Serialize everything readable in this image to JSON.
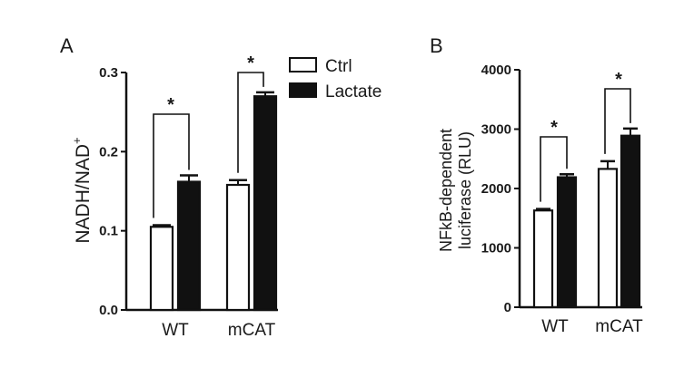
{
  "legend": {
    "ctrl_label": "Ctrl",
    "lactate_label": "Lactate",
    "ctrl_color": "#ffffff",
    "lactate_color": "#111111"
  },
  "chart_data": [
    {
      "panel": "A",
      "type": "bar",
      "categories": [
        "WT",
        "mCAT"
      ],
      "series": [
        {
          "name": "Ctrl",
          "values": [
            0.105,
            0.158
          ],
          "errors": [
            0.002,
            0.006
          ]
        },
        {
          "name": "Lactate",
          "values": [
            0.162,
            0.27
          ],
          "errors": [
            0.008,
            0.005
          ]
        }
      ],
      "ylabel_main": "NADH/NAD",
      "ylabel_sup": "+",
      "ylim": [
        0,
        0.3
      ],
      "yticks": [
        "0.0",
        "0.1",
        "0.2",
        "0.3"
      ],
      "significance": [
        "*",
        "*"
      ]
    },
    {
      "panel": "B",
      "type": "bar",
      "categories": [
        "WT",
        "mCAT"
      ],
      "series": [
        {
          "name": "Ctrl",
          "values": [
            1630,
            2330
          ],
          "errors": [
            25,
            130
          ]
        },
        {
          "name": "Lactate",
          "values": [
            2190,
            2890
          ],
          "errors": [
            50,
            120
          ]
        }
      ],
      "ylabel_line1": "NFkB-dependent",
      "ylabel_line2": "luciferase (RLU)",
      "ylim": [
        0,
        4000
      ],
      "yticks": [
        "0",
        "1000",
        "2000",
        "3000",
        "4000"
      ],
      "significance": [
        "*",
        "*"
      ]
    }
  ]
}
